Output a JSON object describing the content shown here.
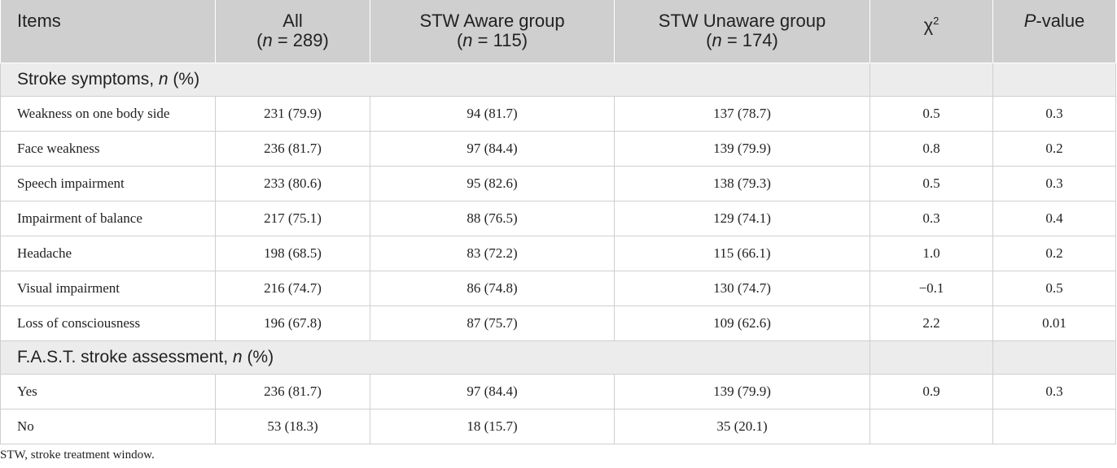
{
  "table": {
    "headers": [
      {
        "title": "Items",
        "sub": ""
      },
      {
        "title": "All",
        "sub_n": "n",
        "sub_rest": " = 289)"
      },
      {
        "title": "STW Aware group",
        "sub_n": "n",
        "sub_rest": " = 115)"
      },
      {
        "title": "STW Unaware group",
        "sub_n": "n",
        "sub_rest": " = 174)"
      },
      {
        "title_base": "χ",
        "title_sup": "2"
      },
      {
        "title_italic": "P",
        "title_rest": "-value"
      }
    ],
    "sections": [
      {
        "label": "Stroke symptoms, ",
        "label_italic": "n",
        "label_rest": " (%)",
        "rows": [
          [
            "Weakness on one body side",
            "231 (79.9)",
            "94 (81.7)",
            "137 (78.7)",
            "0.5",
            "0.3"
          ],
          [
            "Face weakness",
            "236 (81.7)",
            "97 (84.4)",
            "139 (79.9)",
            "0.8",
            "0.2"
          ],
          [
            "Speech impairment",
            "233 (80.6)",
            "95 (82.6)",
            "138 (79.3)",
            "0.5",
            "0.3"
          ],
          [
            "Impairment of balance",
            "217 (75.1)",
            "88 (76.5)",
            "129 (74.1)",
            "0.3",
            "0.4"
          ],
          [
            "Headache",
            "198 (68.5)",
            "83 (72.2)",
            "115 (66.1)",
            "1.0",
            "0.2"
          ],
          [
            "Visual impairment",
            "216 (74.7)",
            "86 (74.8)",
            "130 (74.7)",
            "−0.1",
            "0.5"
          ],
          [
            "Loss of consciousness",
            "196 (67.8)",
            "87 (75.7)",
            "109 (62.6)",
            "2.2",
            "0.01"
          ]
        ]
      },
      {
        "label": "F.A.S.T. stroke assessment, ",
        "label_italic": "n",
        "label_rest": " (%)",
        "rows": [
          [
            "Yes",
            "236 (81.7)",
            "97 (84.4)",
            "139 (79.9)",
            "0.9",
            "0.3"
          ],
          [
            "No",
            "53 (18.3)",
            "18 (15.7)",
            "35 (20.1)",
            "",
            ""
          ]
        ]
      }
    ]
  },
  "footnote": "STW, stroke treatment window."
}
